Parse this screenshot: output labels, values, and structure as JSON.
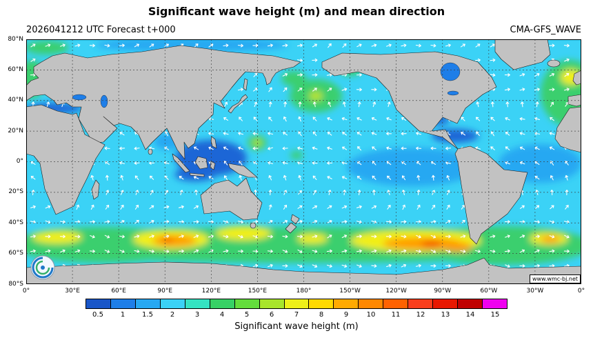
{
  "header": {
    "title": "Significant wave height (m) and mean direction",
    "forecast_label": "2026041212 UTC Forecast t+000",
    "model_label": "CMA-GFS_WAVE"
  },
  "map": {
    "watermark": "www.wmc-bj.net"
  },
  "axes": {
    "lat_ticks": [
      "80°N",
      "60°N",
      "40°N",
      "20°N",
      "0°",
      "20°S",
      "40°S",
      "60°S",
      "80°S"
    ],
    "lon_ticks": [
      "0°",
      "30°E",
      "60°E",
      "90°E",
      "120°E",
      "150°E",
      "180°",
      "150°W",
      "120°W",
      "90°W",
      "60°W",
      "30°W",
      "0°"
    ]
  },
  "colorbar": {
    "title": "Significant wave height (m)",
    "ticks": [
      "0.5",
      "1",
      "1.5",
      "2",
      "3",
      "4",
      "5",
      "6",
      "7",
      "8",
      "9",
      "10",
      "11",
      "12",
      "13",
      "14",
      "15"
    ],
    "colors": [
      "#1956c8",
      "#1e7ee8",
      "#27a8f2",
      "#3bd2f6",
      "#35e3c2",
      "#37d165",
      "#63dd3c",
      "#a8e52b",
      "#eef019",
      "#ffd900",
      "#ffaa00",
      "#ff8800",
      "#ff6200",
      "#f93e1c",
      "#e81800",
      "#c00000",
      "#f000f0"
    ]
  },
  "chart_data": {
    "type": "heatmap",
    "title": "Significant wave height (m) and mean direction",
    "variable": "significant_wave_height",
    "units": "m",
    "overlay": "mean wave direction shown as white arrows",
    "model": "CMA-GFS_WAVE",
    "init_time": "2026041212 UTC",
    "forecast_hour": "t+000",
    "projection": "equirectangular",
    "lon_range_deg": [
      0,
      360
    ],
    "lat_range_deg": [
      -80,
      80
    ],
    "grid_step_deg": {
      "lat": 20,
      "lon": 30
    },
    "colorscale_levels_m": [
      0.5,
      1,
      1.5,
      2,
      3,
      4,
      5,
      6,
      7,
      8,
      9,
      10,
      11,
      12,
      13,
      14,
      15
    ],
    "typical_open_ocean_m": 1.5,
    "notable_features": [
      {
        "region": "Southern Ocean circumglobal storm track (40S-65S)",
        "range_m": [
          3,
          6
        ]
      },
      {
        "region": "South Indian Ocean core (~85E, 52S)",
        "peak_m": 8
      },
      {
        "region": "South Pacific core (~115W, 53S)",
        "peak_m": 9
      },
      {
        "region": "South Atlantic core (~20W, 50S)",
        "peak_m": 7
      },
      {
        "region": "South of Australia (~135E, 48S)",
        "peak_m": 6
      },
      {
        "region": "North Pacific low (~175W, 42N)",
        "peak_m": 4
      },
      {
        "region": "North Atlantic / Norwegian Sea (50-65N)",
        "peak_m": 6
      },
      {
        "region": "Tropical West Pacific system (~150E, 12N)",
        "peak_m": 5
      },
      {
        "region": "Enclosed seas and Maritime Continent",
        "range_m": [
          0.5,
          1
        ]
      }
    ]
  }
}
